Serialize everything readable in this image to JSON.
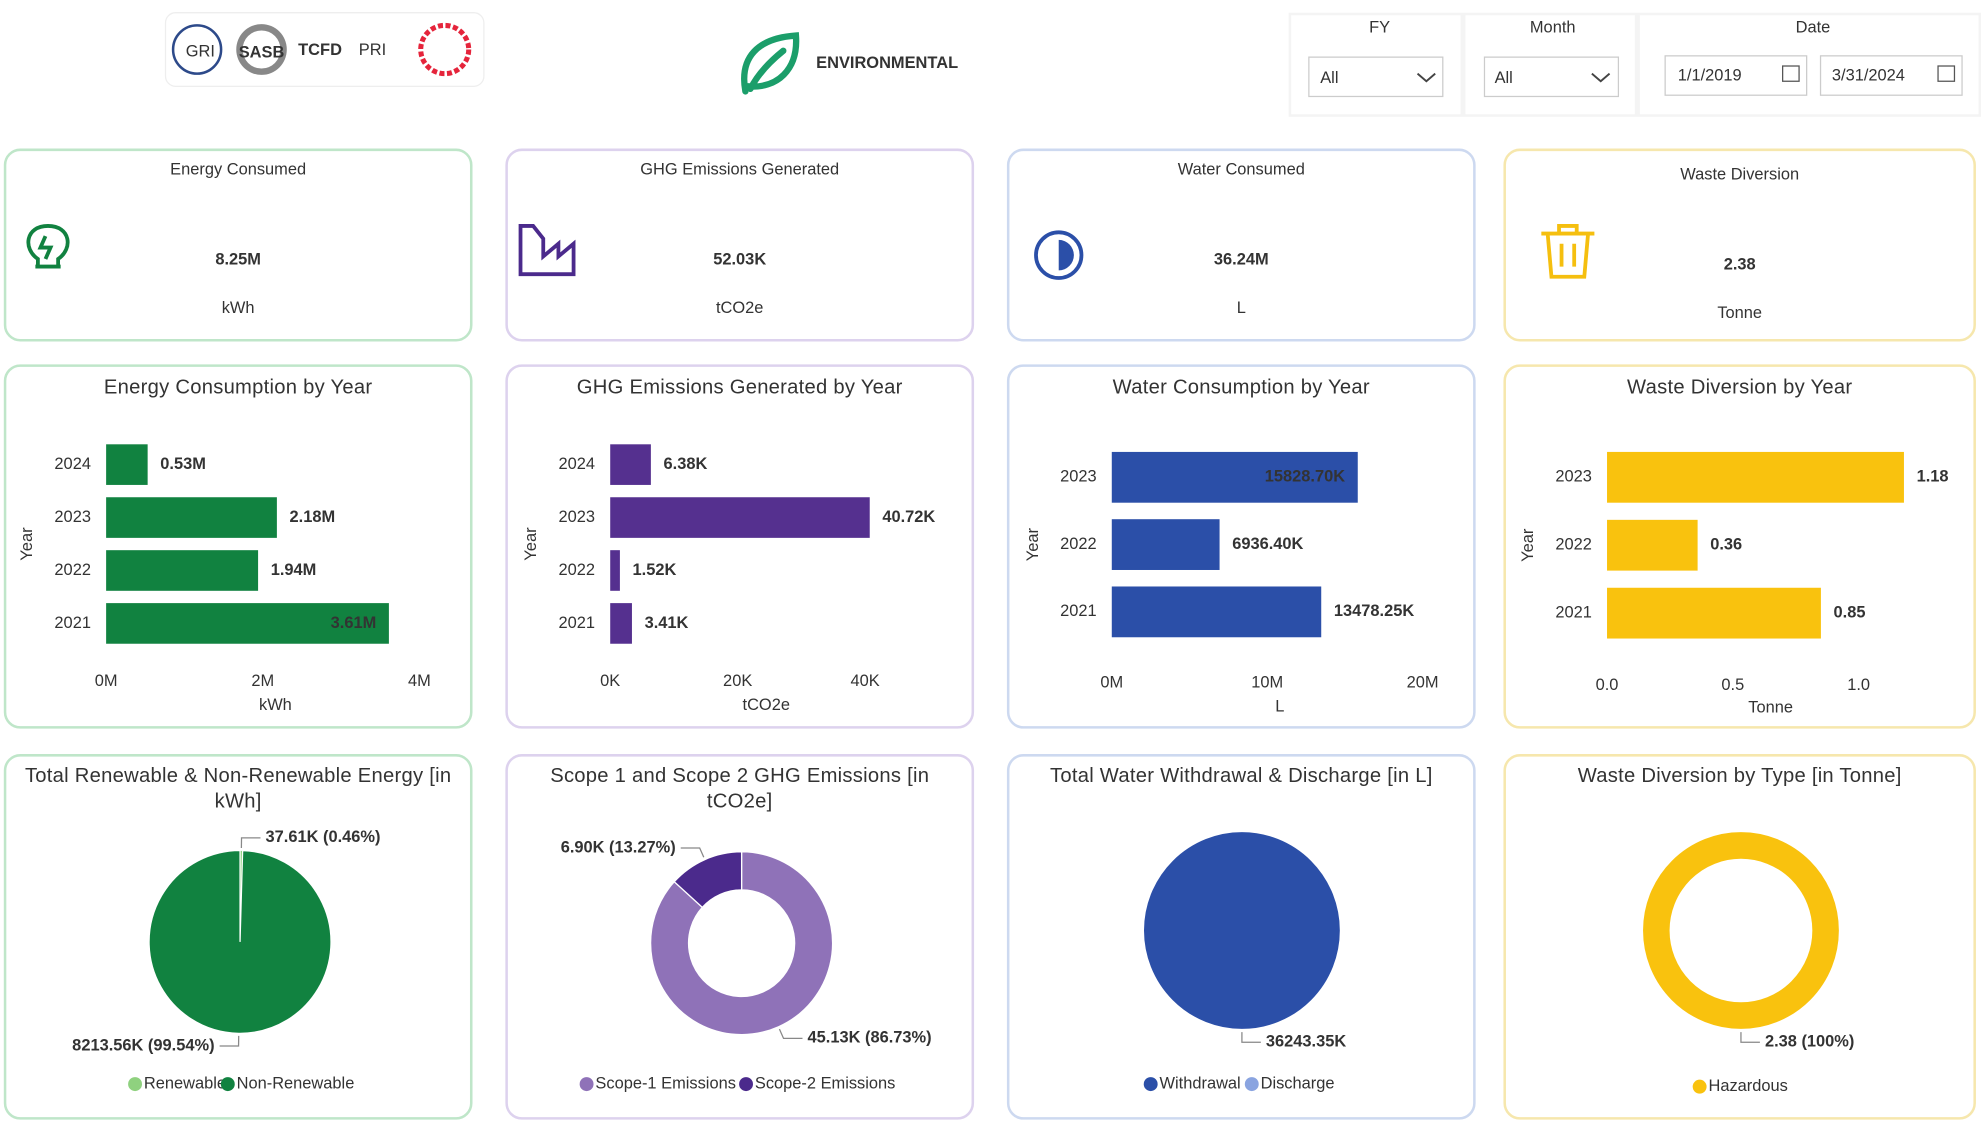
{
  "header": {
    "logos": [
      "GRI",
      "SASB",
      "TCFD",
      "PRI"
    ],
    "title": "ENVIRONMENTAL"
  },
  "filters": [
    {
      "label": "FY",
      "value": "All"
    },
    {
      "label": "Month",
      "value": "All"
    },
    {
      "label": "Date",
      "start": "1/1/2019",
      "end": "3/31/2024"
    }
  ],
  "kpis": [
    {
      "title": "Energy Consumed",
      "value": "8.25M",
      "unit": "kWh",
      "color": "#118240"
    },
    {
      "title": "GHG Emissions Generated",
      "value": "52.03K",
      "unit": "tCO2e",
      "color": "#4b2a8c"
    },
    {
      "title": "Water Consumed",
      "value": "36.24M",
      "unit": "L",
      "color": "#2b4fa8"
    },
    {
      "title": "Waste Diversion",
      "value": "2.38",
      "unit": "Tonne",
      "color": "#f5bf0f"
    }
  ],
  "chart_data": [
    {
      "type": "bar",
      "title": "Energy Consumption by Year",
      "categories": [
        "2024",
        "2023",
        "2022",
        "2021"
      ],
      "values": [
        530000,
        2180000,
        1940000,
        3610000
      ],
      "value_labels": [
        "0.53M",
        "2.18M",
        "1.94M",
        "3.61M"
      ],
      "color": "#118240",
      "xlim": [
        0,
        4000000
      ],
      "xticks": [
        {
          "value": 0,
          "label": "0M"
        },
        {
          "value": 2000000,
          "label": "2M"
        },
        {
          "value": 4000000,
          "label": "4M"
        }
      ],
      "xlabel": "kWh",
      "ylabel": "Year"
    },
    {
      "type": "bar",
      "title": "GHG Emissions Generated by Year",
      "categories": [
        "2024",
        "2023",
        "2022",
        "2021"
      ],
      "values": [
        6380,
        40720,
        1520,
        3410
      ],
      "value_labels": [
        "6.38K",
        "40.72K",
        "1.52K",
        "3.41K"
      ],
      "color": "#55308f",
      "xlim": [
        0,
        45000
      ],
      "xticks": [
        {
          "value": 0,
          "label": "0K"
        },
        {
          "value": 20000,
          "label": "20K"
        },
        {
          "value": 40000,
          "label": "40K"
        }
      ],
      "xlabel": "tCO2e",
      "ylabel": "Year"
    },
    {
      "type": "bar",
      "title": "Water Consumption by Year",
      "categories": [
        "2023",
        "2022",
        "2021"
      ],
      "values": [
        15828700,
        6936400,
        13478250
      ],
      "value_labels": [
        "15828.70K",
        "6936.40K",
        "13478.25K"
      ],
      "color": "#2b4fa8",
      "xlim": [
        0,
        20000000
      ],
      "xticks": [
        {
          "value": 0,
          "label": "0M"
        },
        {
          "value": 10000000,
          "label": "10M"
        },
        {
          "value": 20000000,
          "label": "20M"
        }
      ],
      "xlabel": "L",
      "ylabel": "Year"
    },
    {
      "type": "bar",
      "title": "Waste Diversion by Year",
      "categories": [
        "2023",
        "2022",
        "2021"
      ],
      "values": [
        1.18,
        0.36,
        0.85
      ],
      "color": "#f9c20e",
      "xlim": [
        0,
        1.2
      ],
      "xticks": [
        {
          "value": 0,
          "label": "0.0"
        },
        0.5,
        {
          "value": 1,
          "label": "1.0"
        }
      ],
      "xlabel": "Tonne",
      "ylabel": "Year"
    },
    {
      "type": "pie",
      "title": "Total Renewable & Non-Renewable Energy [in kWh]",
      "categories": [
        "Renewable",
        "Non-Renewable"
      ],
      "values": [
        37610,
        8213560
      ],
      "value_labels": [
        "37.61K (0.46%)",
        "8213.56K (99.54%)"
      ],
      "colors": [
        "#8fd17f",
        "#118240"
      ]
    },
    {
      "type": "donut",
      "title": "Scope 1 and Scope 2 GHG Emissions [in tCO2e]",
      "categories": [
        "Scope-1 Emissions",
        "Scope-2 Emissions"
      ],
      "values": [
        45130,
        6900
      ],
      "value_labels": [
        "45.13K (86.73%)",
        "6.90K (13.27%)"
      ],
      "colors": [
        "#8f72b8",
        "#4b2a8c"
      ]
    },
    {
      "type": "pie",
      "title": "Total Water Withdrawal & Discharge [in L]",
      "categories": [
        "Withdrawal",
        "Discharge"
      ],
      "values": [
        36243350,
        0
      ],
      "value_labels": [
        "36243.35K",
        null
      ],
      "colors": [
        "#2b4fa8",
        "#8aa4e0"
      ]
    },
    {
      "type": "donut",
      "title": "Waste Diversion by Type [in Tonne]",
      "categories": [
        "Hazardous"
      ],
      "values": [
        2.38
      ],
      "value_labels": [
        "2.38 (100%)"
      ],
      "colors": [
        "#f9c20e"
      ]
    }
  ]
}
